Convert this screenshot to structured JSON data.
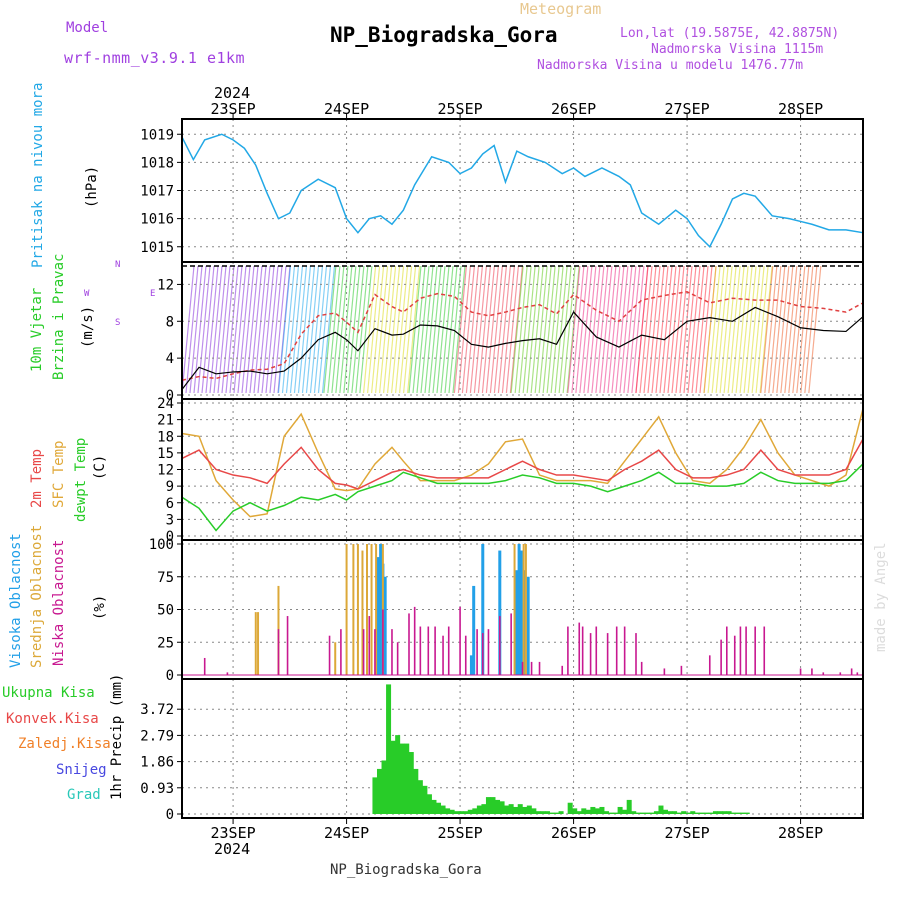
{
  "header": {
    "model_label": "Model",
    "model_value": "wrf-nmm_v3.9.1 e1km",
    "title": "NP_Biogradska_Gora",
    "meteogram": "Meteogram",
    "lonlat": "Lon,lat (19.5875E, 42.8875N)",
    "elevation": "Nadmorska Visina 1115m",
    "model_elevation": "Nadmorska Visina u modelu 1476.77m",
    "year_top": "2024",
    "year_bottom": "2024",
    "footer_station": "NP_Biogradska_Gora",
    "credit": "made by Angel"
  },
  "colors": {
    "pressure": "#22a8e6",
    "wind_speed": "#000000",
    "gust": "#e04040",
    "t2m": "#e84848",
    "sfc": "#e0a838",
    "dew": "#28cc28",
    "cloud_high": "#22a0e8",
    "cloud_mid": "#dca838",
    "cloud_low": "#c81890",
    "precip": "#28cc28",
    "label_model": "#a040e0"
  },
  "panel_labels": {
    "pressure": [
      "Pritisak na nivou mora",
      "(hPa)"
    ],
    "wind": [
      "10m Vjetar",
      "Brzina i Pravac",
      "(m/s)"
    ],
    "wind_compass": [
      "N",
      "S",
      "E",
      "W"
    ],
    "temp": [
      "2m Temp",
      "SFC Temp",
      "dewpt Temp",
      "(C)"
    ],
    "cloud": [
      "Visoka Oblacnost",
      "Srednja Oblacnost",
      "Niska Oblacnost",
      "(%)"
    ],
    "precip_legend": [
      "Ukupna Kisa",
      "Konvek.Kisa",
      "Zaledj.Kisa",
      "Snijeg",
      "Grad"
    ],
    "precip_axis": "1hr Precip (mm)"
  },
  "chart_data": [
    {
      "type": "line",
      "title": "Pritisak na nivou mora",
      "ylabel": "(hPa)",
      "x_unit": "days since 23SEP 00",
      "xlim": [
        -0.45,
        5.55
      ],
      "ylim": [
        1014.6,
        1019.4
      ],
      "yticks": [
        1015,
        1016,
        1017,
        1018,
        1019
      ],
      "xticks": [
        "23SEP",
        "24SEP",
        "25SEP",
        "26SEP",
        "27SEP",
        "28SEP"
      ],
      "series": [
        {
          "name": "pressure",
          "x": [
            -0.45,
            -0.35,
            -0.25,
            -0.1,
            0.0,
            0.1,
            0.2,
            0.3,
            0.4,
            0.5,
            0.6,
            0.75,
            0.9,
            1.0,
            1.1,
            1.2,
            1.3,
            1.4,
            1.5,
            1.6,
            1.75,
            1.9,
            2.0,
            2.1,
            2.2,
            2.3,
            2.4,
            2.5,
            2.6,
            2.75,
            2.9,
            3.0,
            3.1,
            3.25,
            3.4,
            3.5,
            3.6,
            3.75,
            3.9,
            4.0,
            4.1,
            4.2,
            4.3,
            4.4,
            4.5,
            4.6,
            4.75,
            4.9,
            5.0,
            5.1,
            5.25,
            5.4,
            5.55
          ],
          "values": [
            1018.9,
            1018.1,
            1018.8,
            1019.0,
            1018.8,
            1018.5,
            1017.9,
            1016.9,
            1016.0,
            1016.2,
            1017.0,
            1017.4,
            1017.1,
            1016.0,
            1015.5,
            1016.0,
            1016.1,
            1015.8,
            1016.3,
            1017.2,
            1018.2,
            1018.0,
            1017.6,
            1017.8,
            1018.3,
            1018.6,
            1017.3,
            1018.4,
            1018.2,
            1018.0,
            1017.6,
            1017.8,
            1017.5,
            1017.8,
            1017.5,
            1017.2,
            1016.2,
            1015.8,
            1016.3,
            1016.0,
            1015.4,
            1015.0,
            1015.8,
            1016.7,
            1016.9,
            1016.8,
            1016.1,
            1016.0,
            1015.9,
            1015.8,
            1015.6,
            1015.6,
            1015.5
          ]
        }
      ]
    },
    {
      "type": "line",
      "title": "10m Vjetar Brzina i Pravac",
      "ylabel": "(m/s)",
      "ylim": [
        0,
        14
      ],
      "yticks": [
        0,
        4,
        8,
        12
      ],
      "series": [
        {
          "name": "speed",
          "x": [
            -0.45,
            -0.3,
            -0.15,
            0.0,
            0.15,
            0.3,
            0.45,
            0.6,
            0.75,
            0.9,
            1.0,
            1.1,
            1.25,
            1.4,
            1.5,
            1.65,
            1.8,
            1.95,
            2.1,
            2.25,
            2.4,
            2.55,
            2.7,
            2.85,
            3.0,
            3.2,
            3.4,
            3.6,
            3.8,
            4.0,
            4.2,
            4.4,
            4.6,
            4.8,
            5.0,
            5.2,
            5.4,
            5.55
          ],
          "values": [
            0.6,
            3.0,
            2.3,
            2.5,
            2.6,
            2.3,
            2.6,
            4.0,
            6.0,
            6.8,
            6.0,
            4.8,
            7.2,
            6.5,
            6.6,
            7.6,
            7.5,
            7.0,
            5.5,
            5.2,
            5.6,
            5.9,
            6.1,
            5.5,
            9.0,
            6.3,
            5.2,
            6.5,
            6.0,
            8.0,
            8.4,
            8.0,
            9.5,
            8.5,
            7.3,
            7.0,
            6.9,
            8.5
          ]
        },
        {
          "name": "gust",
          "x": [
            -0.45,
            -0.3,
            -0.15,
            0.0,
            0.15,
            0.3,
            0.45,
            0.6,
            0.75,
            0.9,
            1.0,
            1.1,
            1.25,
            1.4,
            1.5,
            1.65,
            1.8,
            1.95,
            2.1,
            2.25,
            2.4,
            2.55,
            2.7,
            2.85,
            3.0,
            3.2,
            3.4,
            3.6,
            3.8,
            4.0,
            4.2,
            4.4,
            4.6,
            4.8,
            5.0,
            5.2,
            5.4,
            5.55
          ],
          "values": [
            1.6,
            2.0,
            1.8,
            2.3,
            2.7,
            2.8,
            3.4,
            6.6,
            8.6,
            8.9,
            7.9,
            6.8,
            10.9,
            9.6,
            9.0,
            10.5,
            11.0,
            10.7,
            9.0,
            8.6,
            9.0,
            9.5,
            9.8,
            8.8,
            10.9,
            9.2,
            8.0,
            10.3,
            10.8,
            11.2,
            10.0,
            10.5,
            10.3,
            10.3,
            9.6,
            9.4,
            9.0,
            10.0
          ]
        }
      ]
    },
    {
      "type": "line",
      "title": "2m Temp / SFC Temp / dewpt Temp",
      "ylabel": "(C)",
      "ylim": [
        0,
        24
      ],
      "yticks": [
        0,
        3,
        6,
        9,
        12,
        15,
        18,
        21,
        24
      ],
      "series": [
        {
          "name": "t2m",
          "x": [
            -0.45,
            -0.3,
            -0.15,
            0.0,
            0.15,
            0.3,
            0.45,
            0.6,
            0.75,
            0.9,
            1.0,
            1.1,
            1.25,
            1.4,
            1.5,
            1.65,
            1.8,
            1.95,
            2.1,
            2.25,
            2.4,
            2.55,
            2.7,
            2.85,
            3.0,
            3.15,
            3.3,
            3.45,
            3.6,
            3.75,
            3.9,
            4.05,
            4.2,
            4.35,
            4.5,
            4.65,
            4.8,
            4.95,
            5.1,
            5.25,
            5.4,
            5.55
          ],
          "values": [
            14.0,
            15.5,
            12.0,
            11.0,
            10.5,
            9.5,
            13.0,
            16.0,
            12.0,
            9.5,
            9.2,
            8.5,
            10.0,
            11.5,
            12.0,
            11.0,
            10.5,
            10.5,
            10.5,
            10.5,
            12.0,
            13.5,
            12.0,
            11.0,
            11.0,
            10.5,
            10.0,
            12.0,
            13.5,
            15.5,
            12.0,
            10.5,
            10.5,
            11.0,
            12.0,
            15.5,
            12.0,
            11.0,
            11.0,
            11.0,
            12.0,
            17.5
          ]
        },
        {
          "name": "sfc",
          "x": [
            -0.45,
            -0.3,
            -0.15,
            0.0,
            0.15,
            0.3,
            0.45,
            0.6,
            0.75,
            0.9,
            1.0,
            1.1,
            1.25,
            1.4,
            1.5,
            1.65,
            1.8,
            1.95,
            2.1,
            2.25,
            2.4,
            2.55,
            2.7,
            2.85,
            3.0,
            3.15,
            3.3,
            3.45,
            3.6,
            3.75,
            3.9,
            4.05,
            4.2,
            4.35,
            4.5,
            4.65,
            4.8,
            4.95,
            5.1,
            5.25,
            5.4,
            5.55
          ],
          "values": [
            18.5,
            18.0,
            10.0,
            6.5,
            3.5,
            4.0,
            18.0,
            22.0,
            15.0,
            8.5,
            8.2,
            8.5,
            13.0,
            16.0,
            13.5,
            10.0,
            10.0,
            10.0,
            11.0,
            13.0,
            17.0,
            17.5,
            11.0,
            10.0,
            10.0,
            10.0,
            9.5,
            13.5,
            17.5,
            21.5,
            15.0,
            10.0,
            9.5,
            12.0,
            16.0,
            21.0,
            15.0,
            11.0,
            10.0,
            9.0,
            11.0,
            23.0
          ]
        },
        {
          "name": "dew",
          "x": [
            -0.45,
            -0.3,
            -0.15,
            0.0,
            0.15,
            0.3,
            0.45,
            0.6,
            0.75,
            0.9,
            1.0,
            1.1,
            1.25,
            1.4,
            1.5,
            1.65,
            1.8,
            1.95,
            2.1,
            2.25,
            2.4,
            2.55,
            2.7,
            2.85,
            3.0,
            3.15,
            3.3,
            3.45,
            3.6,
            3.75,
            3.9,
            4.05,
            4.2,
            4.35,
            4.5,
            4.65,
            4.8,
            4.95,
            5.1,
            5.25,
            5.4,
            5.55
          ],
          "values": [
            7.0,
            5.0,
            1.0,
            4.5,
            6.0,
            4.5,
            5.5,
            7.0,
            6.5,
            7.5,
            6.5,
            8.0,
            9.0,
            10.0,
            11.5,
            10.5,
            9.5,
            9.5,
            9.5,
            9.5,
            10.0,
            11.0,
            10.5,
            9.5,
            9.5,
            9.0,
            8.0,
            9.0,
            10.0,
            11.5,
            9.5,
            9.5,
            9.0,
            9.0,
            9.5,
            11.5,
            10.0,
            9.5,
            9.5,
            9.5,
            10.0,
            13.0
          ]
        }
      ]
    },
    {
      "type": "bar",
      "title": "Visoka / Srednja / Niska Oblacnost",
      "ylabel": "(%)",
      "ylim": [
        0,
        100
      ],
      "yticks": [
        0,
        25,
        50,
        75,
        100
      ],
      "series": [
        {
          "name": "high",
          "x": [
            1.28,
            1.3,
            1.32,
            1.34,
            2.1,
            2.12,
            2.2,
            2.35,
            2.5,
            2.52,
            2.54,
            2.57,
            2.6
          ],
          "values": [
            90,
            100,
            85,
            75,
            15,
            68,
            100,
            95,
            80,
            100,
            95,
            80,
            75
          ]
        },
        {
          "name": "mid",
          "x": [
            0.2,
            0.22,
            0.4,
            0.9,
            1.0,
            1.06,
            1.1,
            1.14,
            1.18,
            1.22,
            1.26,
            1.32,
            2.48,
            2.56,
            2.58
          ],
          "values": [
            48,
            48,
            68,
            25,
            100,
            100,
            100,
            95,
            100,
            100,
            100,
            100,
            100,
            100,
            100
          ]
        },
        {
          "name": "low",
          "x": [
            -0.25,
            -0.05,
            0.4,
            0.48,
            0.85,
            0.95,
            1.15,
            1.2,
            1.25,
            1.32,
            1.4,
            1.45,
            1.55,
            1.6,
            1.65,
            1.72,
            1.78,
            1.85,
            1.9,
            2.0,
            2.05,
            2.15,
            2.2,
            2.25,
            2.35,
            2.45,
            2.55,
            2.63,
            2.7,
            2.9,
            2.95,
            3.05,
            3.08,
            3.15,
            3.2,
            3.3,
            3.38,
            3.45,
            3.55,
            3.6,
            3.8,
            3.95,
            4.2,
            4.3,
            4.35,
            4.42,
            4.47,
            4.52,
            4.6,
            4.68,
            5.0,
            5.1,
            5.2,
            5.35,
            5.45,
            5.5
          ],
          "values": [
            13,
            2,
            35,
            45,
            30,
            35,
            35,
            45,
            35,
            50,
            35,
            25,
            47,
            52,
            37,
            37,
            37,
            30,
            37,
            52,
            30,
            35,
            32,
            35,
            45,
            47,
            10,
            10,
            10,
            7,
            37,
            40,
            37,
            32,
            37,
            32,
            37,
            37,
            32,
            10,
            5,
            7,
            15,
            27,
            37,
            30,
            37,
            37,
            37,
            37,
            5,
            5,
            2,
            2,
            5,
            2
          ]
        }
      ]
    },
    {
      "type": "bar",
      "title": "1hr Precip",
      "ylabel": "1hr Precip (mm)",
      "ylim": [
        0,
        4.65
      ],
      "yticks": [
        0,
        0.93,
        1.86,
        2.79,
        3.72
      ],
      "series": [
        {
          "name": "Ukupna Kisa",
          "x": [
            1.25,
            1.29,
            1.33,
            1.37,
            1.41,
            1.45,
            1.49,
            1.53,
            1.57,
            1.61,
            1.65,
            1.69,
            1.73,
            1.77,
            1.81,
            1.85,
            1.89,
            1.93,
            1.97,
            2.01,
            2.05,
            2.09,
            2.13,
            2.17,
            2.21,
            2.25,
            2.29,
            2.33,
            2.37,
            2.41,
            2.45,
            2.49,
            2.53,
            2.57,
            2.61,
            2.65,
            2.69,
            2.73,
            2.77,
            2.81,
            2.85,
            2.89,
            2.93,
            2.97,
            3.01,
            3.05,
            3.09,
            3.13,
            3.17,
            3.21,
            3.25,
            3.29,
            3.33,
            3.37,
            3.41,
            3.45,
            3.49,
            3.53,
            3.57,
            3.61,
            3.65,
            3.69,
            3.73,
            3.77,
            3.81,
            3.85,
            3.89,
            3.93,
            3.97,
            4.01,
            4.05,
            4.09,
            4.13,
            4.17,
            4.21,
            4.25,
            4.29,
            4.33,
            4.37,
            4.41,
            4.45,
            4.49,
            4.53
          ],
          "values": [
            1.3,
            1.6,
            1.9,
            4.6,
            2.6,
            2.8,
            2.5,
            2.5,
            2.2,
            1.6,
            1.2,
            1.0,
            0.7,
            0.5,
            0.4,
            0.3,
            0.2,
            0.15,
            0.1,
            0.1,
            0.1,
            0.15,
            0.2,
            0.3,
            0.35,
            0.6,
            0.6,
            0.5,
            0.45,
            0.3,
            0.35,
            0.25,
            0.35,
            0.25,
            0.3,
            0.2,
            0.1,
            0.1,
            0.1,
            0.05,
            0.05,
            0.1,
            0.0,
            0.4,
            0.2,
            0.1,
            0.2,
            0.15,
            0.25,
            0.2,
            0.25,
            0.1,
            0.05,
            0.05,
            0.25,
            0.15,
            0.5,
            0.1,
            0.05,
            0.05,
            0.05,
            0.05,
            0.1,
            0.3,
            0.15,
            0.1,
            0.1,
            0.05,
            0.1,
            0.05,
            0.1,
            0.05,
            0.05,
            0.05,
            0.05,
            0.1,
            0.1,
            0.1,
            0.1,
            0.05,
            0.05,
            0.05,
            0.05
          ]
        }
      ]
    }
  ]
}
